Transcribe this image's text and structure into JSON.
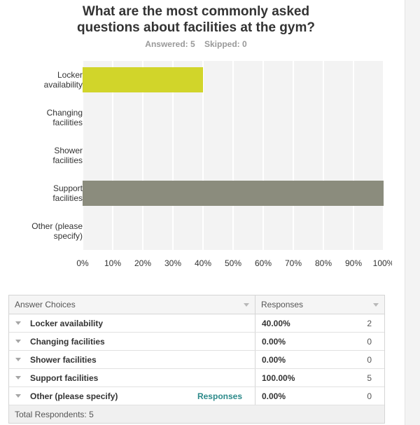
{
  "question": {
    "title": "What are the most commonly asked questions about facilities at the gym?",
    "answered": "Answered: 5",
    "skipped": "Skipped: 0"
  },
  "chart_data": {
    "type": "bar",
    "orientation": "horizontal",
    "categories": [
      "Locker availability",
      "Changing facilities",
      "Shower facilities",
      "Support facilities",
      "Other (please specify)"
    ],
    "category_lines": [
      [
        "Locker",
        "availability"
      ],
      [
        "Changing",
        "facilities"
      ],
      [
        "Shower",
        "facilities"
      ],
      [
        "Support",
        "facilities"
      ],
      [
        "Other (please",
        "specify)"
      ]
    ],
    "values": [
      40,
      0,
      0,
      100,
      0
    ],
    "bar_colors": [
      "#d1d52a",
      "#d1d52a",
      "#d1d52a",
      "#8b8c7d",
      "#d1d52a"
    ],
    "xlim": [
      0,
      100
    ],
    "x_ticks": [
      "0%",
      "10%",
      "20%",
      "30%",
      "40%",
      "50%",
      "60%",
      "70%",
      "80%",
      "90%",
      "100%"
    ],
    "grid": true,
    "plot_background": "#f3f3f3",
    "grid_color": "#ffffff"
  },
  "table": {
    "header": {
      "choices": "Answer Choices",
      "responses": "Responses"
    },
    "rows": [
      {
        "label": "Locker availability",
        "percent": "40.00%",
        "count": "2",
        "link": ""
      },
      {
        "label": "Changing facilities",
        "percent": "0.00%",
        "count": "0",
        "link": ""
      },
      {
        "label": "Shower facilities",
        "percent": "0.00%",
        "count": "0",
        "link": ""
      },
      {
        "label": "Support facilities",
        "percent": "100.00%",
        "count": "5",
        "link": ""
      },
      {
        "label": "Other (please specify)",
        "percent": "0.00%",
        "count": "0",
        "link": "Responses"
      }
    ],
    "footer": "Total Respondents: 5"
  }
}
